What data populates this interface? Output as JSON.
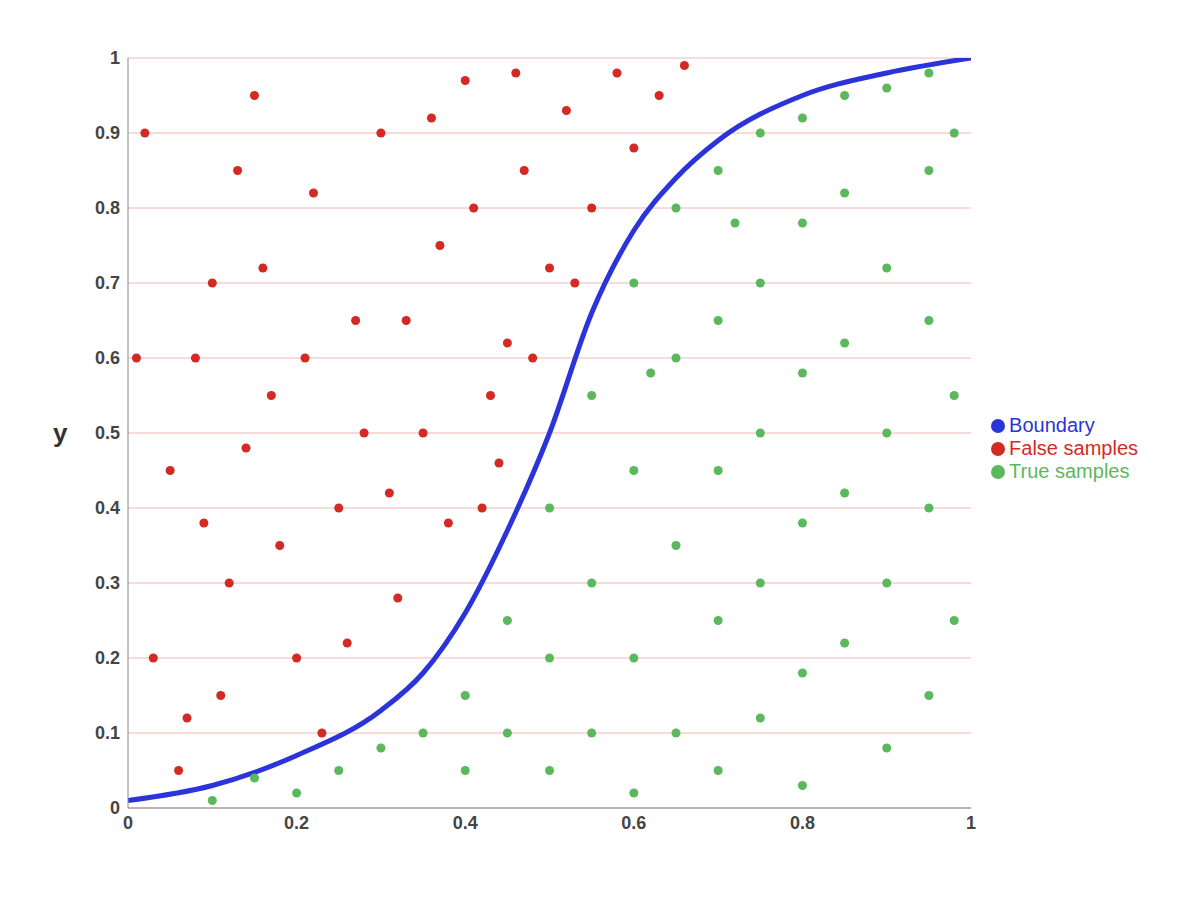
{
  "chart_data": {
    "type": "scatter",
    "y_label": "y",
    "xlim": [
      0,
      1
    ],
    "ylim": [
      0,
      1
    ],
    "xticks": [
      0,
      0.2,
      0.4,
      0.6,
      0.8,
      1
    ],
    "yticks": [
      0,
      0.1,
      0.2,
      0.3,
      0.4,
      0.5,
      0.6,
      0.7,
      0.8,
      0.9,
      1
    ],
    "grid": true,
    "legend": "right",
    "series": [
      {
        "name": "Boundary",
        "type": "line",
        "color": "#2a34d8",
        "line_style": "solid",
        "x": [
          0,
          0.1,
          0.2,
          0.3,
          0.35,
          0.4,
          0.45,
          0.5,
          0.55,
          0.6,
          0.65,
          0.7,
          0.8,
          0.9,
          1
        ],
        "values": [
          0.01,
          0.03,
          0.07,
          0.13,
          0.18,
          0.26,
          0.37,
          0.5,
          0.66,
          0.77,
          0.84,
          0.89,
          0.95,
          0.98,
          1
        ]
      },
      {
        "name": "False samples",
        "type": "scatter",
        "color": "#d42a24",
        "marker": "circle",
        "x": [
          0.02,
          0.05,
          0.07,
          0.1,
          0.12,
          0.15,
          0.17,
          0.2,
          0.22,
          0.25,
          0.27,
          0.3,
          0.32,
          0.35,
          0.37,
          0.4,
          0.42,
          0.45,
          0.47,
          0.5,
          0.52,
          0.55,
          0.58,
          0.6,
          0.63,
          0.03,
          0.08,
          0.13,
          0.18,
          0.23,
          0.28,
          0.33,
          0.38,
          0.43,
          0.48,
          0.06,
          0.11,
          0.26,
          0.41,
          0.16,
          0.21,
          0.36,
          0.46,
          0.53,
          0.66,
          0.01,
          0.09,
          0.14,
          0.31,
          0.44
        ],
        "values": [
          0.9,
          0.45,
          0.12,
          0.7,
          0.3,
          0.95,
          0.55,
          0.2,
          0.82,
          0.4,
          0.65,
          0.9,
          0.28,
          0.5,
          0.75,
          0.97,
          0.4,
          0.62,
          0.85,
          0.72,
          0.93,
          0.8,
          0.98,
          0.88,
          0.95,
          0.2,
          0.6,
          0.85,
          0.35,
          0.1,
          0.5,
          0.65,
          0.38,
          0.55,
          0.6,
          0.05,
          0.15,
          0.22,
          0.8,
          0.72,
          0.6,
          0.92,
          0.98,
          0.7,
          0.99,
          0.6,
          0.38,
          0.48,
          0.42,
          0.46
        ]
      },
      {
        "name": "True samples",
        "type": "scatter",
        "color": "#5cb85c",
        "marker": "circle",
        "x": [
          0.1,
          0.15,
          0.2,
          0.25,
          0.3,
          0.35,
          0.4,
          0.4,
          0.45,
          0.45,
          0.5,
          0.5,
          0.5,
          0.55,
          0.55,
          0.55,
          0.6,
          0.6,
          0.6,
          0.6,
          0.65,
          0.65,
          0.65,
          0.65,
          0.7,
          0.7,
          0.7,
          0.7,
          0.7,
          0.75,
          0.75,
          0.75,
          0.75,
          0.75,
          0.8,
          0.8,
          0.8,
          0.8,
          0.8,
          0.8,
          0.85,
          0.85,
          0.85,
          0.85,
          0.85,
          0.9,
          0.9,
          0.9,
          0.9,
          0.9,
          0.95,
          0.95,
          0.95,
          0.95,
          0.95,
          0.98,
          0.98,
          0.98,
          0.62,
          0.72
        ],
        "values": [
          0.01,
          0.04,
          0.02,
          0.05,
          0.08,
          0.1,
          0.15,
          0.05,
          0.25,
          0.1,
          0.4,
          0.2,
          0.05,
          0.55,
          0.3,
          0.1,
          0.7,
          0.45,
          0.2,
          0.02,
          0.8,
          0.6,
          0.35,
          0.1,
          0.85,
          0.65,
          0.45,
          0.25,
          0.05,
          0.9,
          0.7,
          0.5,
          0.3,
          0.12,
          0.92,
          0.78,
          0.58,
          0.38,
          0.18,
          0.03,
          0.95,
          0.82,
          0.62,
          0.42,
          0.22,
          0.96,
          0.72,
          0.5,
          0.3,
          0.08,
          0.98,
          0.85,
          0.65,
          0.4,
          0.15,
          0.9,
          0.55,
          0.25,
          0.58,
          0.78
        ]
      }
    ]
  }
}
